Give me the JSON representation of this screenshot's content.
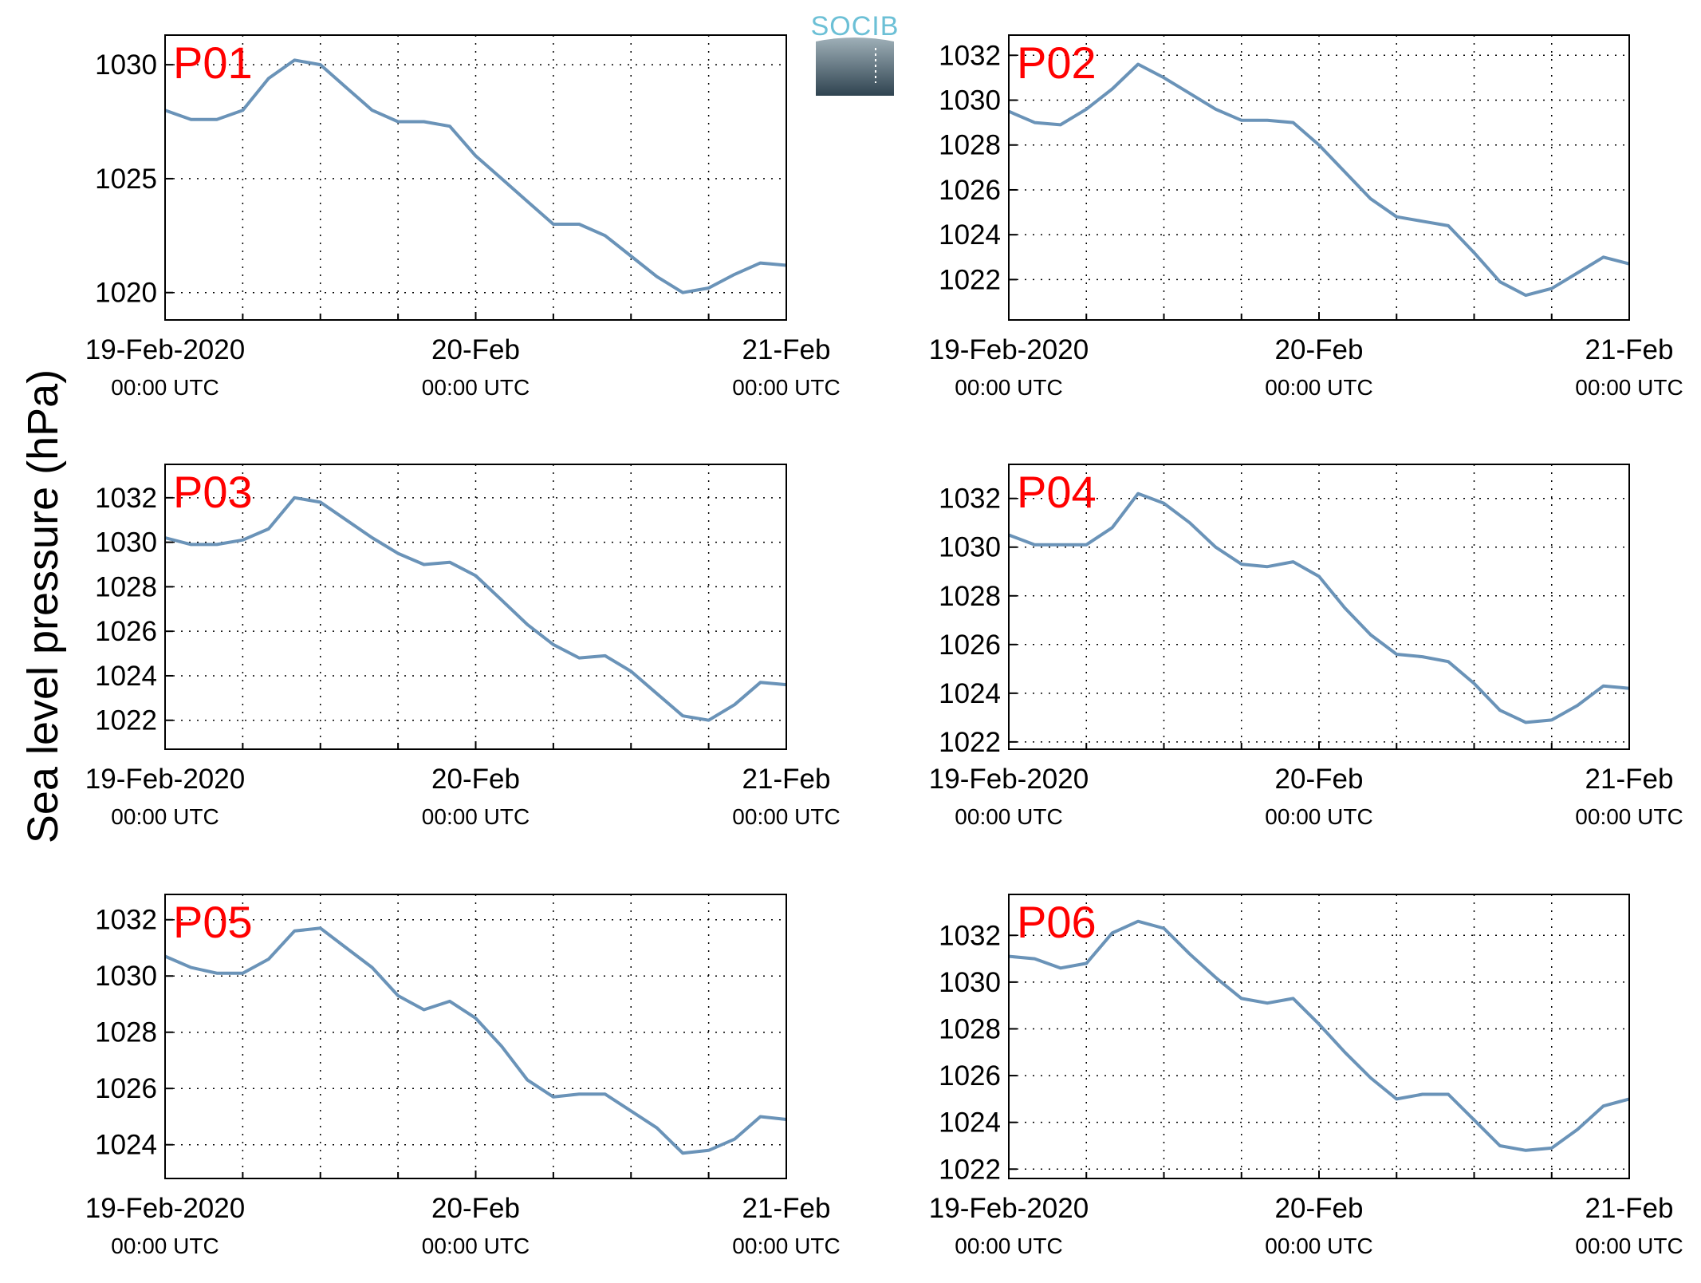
{
  "ylabel": "Sea level pressure (hPa)",
  "logo_text": "SOCIB",
  "chart_data": [
    {
      "type": "line",
      "title": "P01",
      "color": "#6a93b8",
      "grid": true,
      "x": [
        0,
        2,
        4,
        6,
        8,
        10,
        12,
        14,
        16,
        18,
        20,
        22,
        24,
        26,
        28,
        30,
        32,
        34,
        36,
        38,
        40,
        42,
        44,
        46,
        48
      ],
      "values": [
        1028.0,
        1027.6,
        1027.6,
        1028.0,
        1029.4,
        1030.2,
        1030.0,
        1029.0,
        1028.0,
        1027.5,
        1027.5,
        1027.3,
        1026.0,
        1025.0,
        1024.0,
        1023.0,
        1023.0,
        1022.5,
        1021.6,
        1020.7,
        1020.0,
        1020.2,
        1020.8,
        1021.3,
        1021.2
      ],
      "xlim": [
        0,
        48
      ],
      "ylim": [
        1018.8,
        1031.3
      ],
      "xticks": [
        {
          "value": 0,
          "label": "19-Feb-2020",
          "label2": "00:00 UTC"
        },
        {
          "value": 24,
          "label": "20-Feb",
          "label2": "00:00 UTC"
        },
        {
          "value": 48,
          "label": "21-Feb",
          "label2": "00:00 UTC"
        }
      ],
      "xminor_ticks": [
        6,
        12,
        18,
        30,
        36,
        42
      ],
      "yticks": [
        1020,
        1025,
        1030
      ]
    },
    {
      "type": "line",
      "title": "P02",
      "color": "#6a93b8",
      "grid": true,
      "x": [
        0,
        2,
        4,
        6,
        8,
        10,
        12,
        14,
        16,
        18,
        20,
        22,
        24,
        26,
        28,
        30,
        32,
        34,
        36,
        38,
        40,
        42,
        44,
        46,
        48
      ],
      "values": [
        1029.5,
        1029.0,
        1028.9,
        1029.6,
        1030.5,
        1031.6,
        1031.0,
        1030.3,
        1029.6,
        1029.1,
        1029.1,
        1029.0,
        1028.0,
        1026.8,
        1025.6,
        1024.8,
        1024.6,
        1024.4,
        1023.2,
        1021.9,
        1021.3,
        1021.6,
        1022.3,
        1023.0,
        1022.7
      ],
      "xlim": [
        0,
        48
      ],
      "ylim": [
        1020.2,
        1032.9
      ],
      "xticks": [
        {
          "value": 0,
          "label": "19-Feb-2020",
          "label2": "00:00 UTC"
        },
        {
          "value": 24,
          "label": "20-Feb",
          "label2": "00:00 UTC"
        },
        {
          "value": 48,
          "label": "21-Feb",
          "label2": "00:00 UTC"
        }
      ],
      "xminor_ticks": [
        6,
        12,
        18,
        30,
        36,
        42
      ],
      "yticks": [
        1022,
        1024,
        1026,
        1028,
        1030,
        1032
      ]
    },
    {
      "type": "line",
      "title": "P03",
      "color": "#6a93b8",
      "grid": true,
      "x": [
        0,
        2,
        4,
        6,
        8,
        10,
        12,
        14,
        16,
        18,
        20,
        22,
        24,
        26,
        28,
        30,
        32,
        34,
        36,
        38,
        40,
        42,
        44,
        46,
        48
      ],
      "values": [
        1030.2,
        1029.9,
        1029.9,
        1030.1,
        1030.6,
        1032.0,
        1031.8,
        1031.0,
        1030.2,
        1029.5,
        1029.0,
        1029.1,
        1028.5,
        1027.4,
        1026.3,
        1025.4,
        1024.8,
        1024.9,
        1024.2,
        1023.2,
        1022.2,
        1022.0,
        1022.7,
        1023.7,
        1023.6
      ],
      "xlim": [
        0,
        48
      ],
      "ylim": [
        1020.7,
        1033.5
      ],
      "xticks": [
        {
          "value": 0,
          "label": "19-Feb-2020",
          "label2": "00:00 UTC"
        },
        {
          "value": 24,
          "label": "20-Feb",
          "label2": "00:00 UTC"
        },
        {
          "value": 48,
          "label": "21-Feb",
          "label2": "00:00 UTC"
        }
      ],
      "xminor_ticks": [
        6,
        12,
        18,
        30,
        36,
        42
      ],
      "yticks": [
        1022,
        1024,
        1026,
        1028,
        1030,
        1032
      ]
    },
    {
      "type": "line",
      "title": "P04",
      "color": "#6a93b8",
      "grid": true,
      "x": [
        0,
        2,
        4,
        6,
        8,
        10,
        12,
        14,
        16,
        18,
        20,
        22,
        24,
        26,
        28,
        30,
        32,
        34,
        36,
        38,
        40,
        42,
        44,
        46,
        48
      ],
      "values": [
        1030.5,
        1030.1,
        1030.1,
        1030.1,
        1030.8,
        1032.2,
        1031.8,
        1031.0,
        1030.0,
        1029.3,
        1029.2,
        1029.4,
        1028.8,
        1027.5,
        1026.4,
        1025.6,
        1025.5,
        1025.3,
        1024.4,
        1023.3,
        1022.8,
        1022.9,
        1023.5,
        1024.3,
        1024.2
      ],
      "xlim": [
        0,
        48
      ],
      "ylim": [
        1021.7,
        1033.4
      ],
      "xticks": [
        {
          "value": 0,
          "label": "19-Feb-2020",
          "label2": "00:00 UTC"
        },
        {
          "value": 24,
          "label": "20-Feb",
          "label2": "00:00 UTC"
        },
        {
          "value": 48,
          "label": "21-Feb",
          "label2": "00:00 UTC"
        }
      ],
      "xminor_ticks": [
        6,
        12,
        18,
        30,
        36,
        42
      ],
      "yticks": [
        1022,
        1024,
        1026,
        1028,
        1030,
        1032
      ]
    },
    {
      "type": "line",
      "title": "P05",
      "color": "#6a93b8",
      "grid": true,
      "x": [
        0,
        2,
        4,
        6,
        8,
        10,
        12,
        14,
        16,
        18,
        20,
        22,
        24,
        26,
        28,
        30,
        32,
        34,
        36,
        38,
        40,
        42,
        44,
        46,
        48
      ],
      "values": [
        1030.7,
        1030.3,
        1030.1,
        1030.1,
        1030.6,
        1031.6,
        1031.7,
        1031.0,
        1030.3,
        1029.3,
        1028.8,
        1029.1,
        1028.5,
        1027.5,
        1026.3,
        1025.7,
        1025.8,
        1025.8,
        1025.2,
        1024.6,
        1023.7,
        1023.8,
        1024.2,
        1025.0,
        1024.9
      ],
      "xlim": [
        0,
        48
      ],
      "ylim": [
        1022.8,
        1032.9
      ],
      "xticks": [
        {
          "value": 0,
          "label": "19-Feb-2020",
          "label2": "00:00 UTC"
        },
        {
          "value": 24,
          "label": "20-Feb",
          "label2": "00:00 UTC"
        },
        {
          "value": 48,
          "label": "21-Feb",
          "label2": "00:00 UTC"
        }
      ],
      "xminor_ticks": [
        6,
        12,
        18,
        30,
        36,
        42
      ],
      "yticks": [
        1024,
        1026,
        1028,
        1030,
        1032
      ]
    },
    {
      "type": "line",
      "title": "P06",
      "color": "#6a93b8",
      "grid": true,
      "x": [
        0,
        2,
        4,
        6,
        8,
        10,
        12,
        14,
        16,
        18,
        20,
        22,
        24,
        26,
        28,
        30,
        32,
        34,
        36,
        38,
        40,
        42,
        44,
        46,
        48
      ],
      "values": [
        1031.1,
        1031.0,
        1030.6,
        1030.8,
        1032.1,
        1032.6,
        1032.3,
        1031.2,
        1030.2,
        1029.3,
        1029.1,
        1029.3,
        1028.2,
        1027.0,
        1025.9,
        1025.0,
        1025.2,
        1025.2,
        1024.1,
        1023.0,
        1022.8,
        1022.9,
        1023.7,
        1024.7,
        1025.0
      ],
      "xlim": [
        0,
        48
      ],
      "ylim": [
        1021.6,
        1033.75
      ],
      "xticks": [
        {
          "value": 0,
          "label": "19-Feb-2020",
          "label2": "00:00 UTC"
        },
        {
          "value": 24,
          "label": "20-Feb",
          "label2": "00:00 UTC"
        },
        {
          "value": 48,
          "label": "21-Feb",
          "label2": "00:00 UTC"
        }
      ],
      "xminor_ticks": [
        6,
        12,
        18,
        30,
        36,
        42
      ],
      "yticks": [
        1022,
        1024,
        1026,
        1028,
        1030,
        1032
      ]
    }
  ]
}
